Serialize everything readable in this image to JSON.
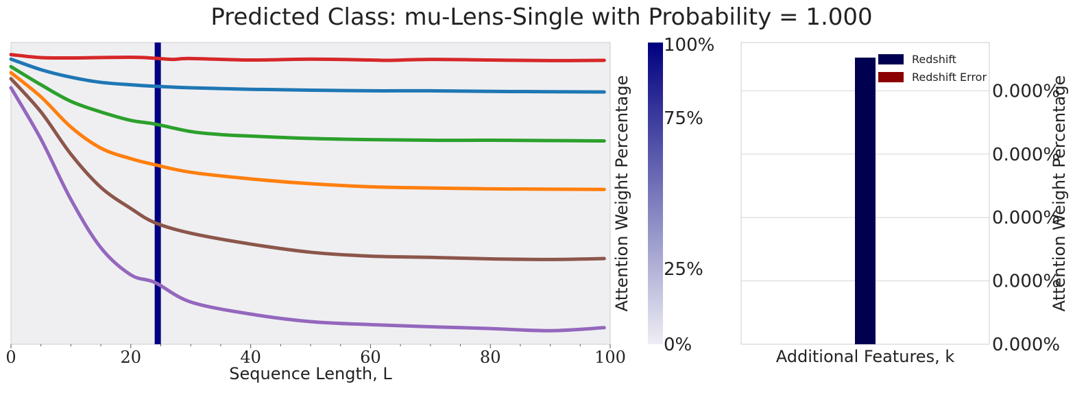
{
  "chart_data": [
    {
      "type": "line",
      "title": "Predicted Class: mu-Lens-Single with Probability = 1.000",
      "xlabel": "Sequence Length, L",
      "ylabel": "",
      "xlim": [
        0,
        100
      ],
      "xticks": [
        0,
        20,
        40,
        60,
        80,
        100
      ],
      "vertical_line_x": 24.5,
      "grid": false,
      "series": [
        {
          "color": "#d62728",
          "x": [
            0,
            5,
            10,
            20,
            24,
            27,
            30,
            40,
            50,
            60,
            63,
            70,
            80,
            90,
            99
          ],
          "values": [
            0.96,
            0.95,
            0.949,
            0.951,
            0.948,
            0.944,
            0.947,
            0.942,
            0.945,
            0.942,
            0.941,
            0.944,
            0.942,
            0.94,
            0.941
          ]
        },
        {
          "color": "#1f77b4",
          "x": [
            0,
            5,
            10,
            15,
            20,
            24,
            30,
            40,
            50,
            60,
            70,
            80,
            90,
            99
          ],
          "values": [
            0.945,
            0.91,
            0.885,
            0.868,
            0.86,
            0.855,
            0.85,
            0.845,
            0.842,
            0.84,
            0.84,
            0.838,
            0.837,
            0.836
          ]
        },
        {
          "color": "#2ca02c",
          "x": [
            0,
            5,
            10,
            15,
            20,
            24,
            30,
            35,
            40,
            50,
            60,
            70,
            80,
            90,
            99
          ],
          "values": [
            0.92,
            0.86,
            0.805,
            0.77,
            0.742,
            0.73,
            0.705,
            0.695,
            0.69,
            0.682,
            0.678,
            0.676,
            0.676,
            0.675,
            0.674
          ]
        },
        {
          "color": "#ff7f0e",
          "x": [
            0,
            5,
            10,
            15,
            20,
            24,
            30,
            40,
            50,
            60,
            70,
            80,
            90,
            99
          ],
          "values": [
            0.9,
            0.82,
            0.72,
            0.65,
            0.615,
            0.595,
            0.57,
            0.548,
            0.532,
            0.522,
            0.518,
            0.515,
            0.514,
            0.513
          ]
        },
        {
          "color": "#8c564b",
          "x": [
            0,
            5,
            10,
            15,
            20,
            24,
            30,
            40,
            50,
            60,
            70,
            80,
            90,
            99
          ],
          "values": [
            0.88,
            0.77,
            0.63,
            0.52,
            0.45,
            0.403,
            0.368,
            0.332,
            0.305,
            0.292,
            0.288,
            0.283,
            0.281,
            0.284
          ]
        },
        {
          "color": "#9467bd",
          "x": [
            0,
            5,
            10,
            15,
            20,
            24,
            30,
            40,
            50,
            60,
            70,
            80,
            90,
            99
          ],
          "values": [
            0.85,
            0.68,
            0.48,
            0.32,
            0.23,
            0.205,
            0.14,
            0.1,
            0.075,
            0.065,
            0.058,
            0.052,
            0.045,
            0.055
          ]
        }
      ]
    },
    {
      "type": "heatmap",
      "role": "colorbar",
      "ylabel": "Attention Weight Percentage",
      "tick_labels": [
        "100%",
        "75%",
        "25%",
        "0%"
      ],
      "tick_values": [
        100,
        75,
        25,
        0
      ],
      "colors": [
        "#eeeef5",
        "#000080"
      ]
    },
    {
      "type": "bar",
      "xlabel": "Additional Features, k",
      "ylabel": "Attention Weight Percentage",
      "ytick_labels": [
        "0.000%",
        "0.000%",
        "0.000%",
        "0.000%",
        "0.000%"
      ],
      "grid": true,
      "legend_position": "top-right",
      "series": [
        {
          "name": "Redshift",
          "color": "#000050",
          "value": 0.95
        },
        {
          "name": "Redshift Error",
          "color": "#8b0000",
          "value": 0
        }
      ]
    }
  ]
}
